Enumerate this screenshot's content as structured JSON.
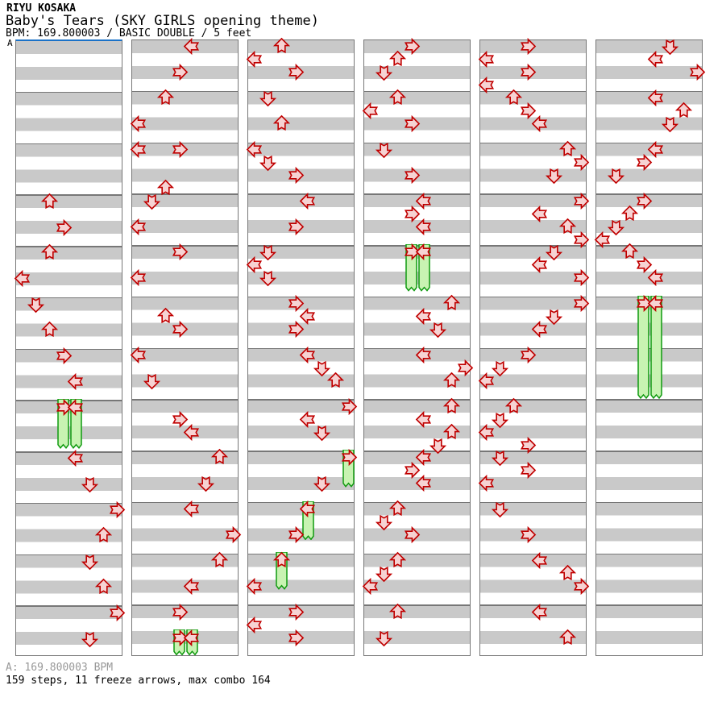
{
  "header": {
    "artist": "RIYU KOSAKA",
    "title": "Baby's Tears (SKY GIRLS opening theme)",
    "info": "BPM: 169.800003 / BASIC DOUBLE / 5 feet"
  },
  "marker": {
    "label": "A"
  },
  "footer": {
    "bpm_line": "A: 169.800003 BPM",
    "stats_line": "159 steps, 11 freeze arrows, max combo 164"
  },
  "colors": {
    "stripe_gray": "#c9c9c9",
    "border_gray": "#777777",
    "arrow_red": "#c00000",
    "arrow_fill": "#f6d3d3",
    "freeze_green": "#0f9a0f",
    "freeze_fill": "#c8f3b2",
    "marker_blue": "#1a72c8",
    "footer_gray": "#989898"
  },
  "chart": {
    "columns_count": 6,
    "measures_per_column": 12,
    "beats_per_measure": 4,
    "lanes": 8,
    "lane_directions": [
      "left",
      "down",
      "up",
      "right",
      "left",
      "down",
      "up",
      "right"
    ],
    "columns": [
      {
        "steps": [
          [
            3,
            0,
            2
          ],
          [
            3,
            2,
            3
          ],
          [
            4,
            0,
            2
          ],
          [
            4,
            2,
            0
          ],
          [
            5,
            0,
            1
          ],
          [
            5,
            2,
            2
          ],
          [
            6,
            0,
            3
          ],
          [
            6,
            2,
            4
          ],
          [
            8,
            0,
            4
          ],
          [
            8,
            2,
            5
          ],
          [
            9,
            0,
            7
          ],
          [
            9,
            2,
            6
          ],
          [
            10,
            0,
            5
          ],
          [
            10,
            2,
            6
          ],
          [
            11,
            0,
            7
          ],
          [
            11,
            2,
            5
          ]
        ],
        "freezes": [
          [
            7,
            0,
            3,
            3.75
          ],
          [
            7,
            0,
            4,
            3.75
          ]
        ]
      },
      {
        "steps": [
          [
            0,
            0,
            4
          ],
          [
            0,
            2,
            3
          ],
          [
            1,
            0,
            2
          ],
          [
            1,
            2,
            0
          ],
          [
            2,
            0,
            0
          ],
          [
            2,
            0,
            3
          ],
          [
            2,
            3,
            2
          ],
          [
            3,
            0,
            1
          ],
          [
            3,
            2,
            0
          ],
          [
            4,
            0,
            3
          ],
          [
            4,
            2,
            0
          ],
          [
            5,
            1,
            2
          ],
          [
            5,
            2,
            3
          ],
          [
            6,
            0,
            0
          ],
          [
            6,
            2,
            1
          ],
          [
            7,
            1,
            3
          ],
          [
            7,
            2,
            4
          ],
          [
            8,
            0,
            6
          ],
          [
            8,
            2,
            5
          ],
          [
            9,
            0,
            4
          ],
          [
            9,
            2,
            7
          ],
          [
            10,
            0,
            6
          ],
          [
            10,
            2,
            4
          ],
          [
            11,
            0,
            3
          ]
        ],
        "freezes": [
          [
            11,
            2,
            3,
            3.9
          ],
          [
            11,
            2,
            4,
            3.9
          ]
        ]
      },
      {
        "steps": [
          [
            0,
            0,
            2
          ],
          [
            0,
            1,
            0
          ],
          [
            0,
            2,
            3
          ],
          [
            1,
            0,
            1
          ],
          [
            1,
            2,
            2
          ],
          [
            2,
            0,
            0
          ],
          [
            2,
            1,
            1
          ],
          [
            2,
            2,
            3
          ],
          [
            3,
            0,
            4
          ],
          [
            3,
            2,
            3
          ],
          [
            4,
            0,
            1
          ],
          [
            4,
            1,
            0
          ],
          [
            4,
            2,
            1
          ],
          [
            5,
            0,
            3
          ],
          [
            5,
            1,
            4
          ],
          [
            5,
            2,
            3
          ],
          [
            6,
            0,
            4
          ],
          [
            6,
            1,
            5
          ],
          [
            6,
            2,
            6
          ],
          [
            7,
            0,
            7
          ],
          [
            7,
            1,
            4
          ],
          [
            7,
            2,
            5
          ],
          [
            8,
            2,
            5
          ],
          [
            9,
            2,
            3
          ],
          [
            10,
            2,
            0
          ],
          [
            11,
            0,
            3
          ],
          [
            11,
            1,
            0
          ],
          [
            11,
            2,
            3
          ]
        ],
        "freezes": [
          [
            8,
            0,
            7,
            2.8
          ],
          [
            9,
            0,
            4,
            2.9
          ],
          [
            10,
            0,
            2,
            2.8
          ]
        ]
      },
      {
        "steps": [
          [
            0,
            0,
            3
          ],
          [
            0,
            1,
            2
          ],
          [
            0,
            2,
            1
          ],
          [
            1,
            0,
            2
          ],
          [
            1,
            1,
            0
          ],
          [
            1,
            2,
            3
          ],
          [
            2,
            0,
            1
          ],
          [
            2,
            2,
            3
          ],
          [
            3,
            0,
            4
          ],
          [
            3,
            1,
            3
          ],
          [
            3,
            2,
            4
          ],
          [
            5,
            0,
            6
          ],
          [
            5,
            1,
            4
          ],
          [
            5,
            2,
            5
          ],
          [
            6,
            0,
            4
          ],
          [
            6,
            1,
            7
          ],
          [
            6,
            2,
            6
          ],
          [
            7,
            0,
            6
          ],
          [
            7,
            1,
            4
          ],
          [
            7,
            2,
            6
          ],
          [
            7,
            3,
            5
          ],
          [
            8,
            0,
            4
          ],
          [
            8,
            1,
            3
          ],
          [
            8,
            2,
            4
          ],
          [
            9,
            0,
            2
          ],
          [
            9,
            1,
            1
          ],
          [
            9,
            2,
            3
          ],
          [
            10,
            0,
            2
          ],
          [
            10,
            1,
            1
          ],
          [
            10,
            2,
            0
          ],
          [
            11,
            0,
            2
          ],
          [
            11,
            2,
            1
          ]
        ],
        "freezes": [
          [
            4,
            0,
            3,
            3.55
          ],
          [
            4,
            0,
            4,
            3.55
          ]
        ]
      },
      {
        "steps": [
          [
            0,
            0,
            3
          ],
          [
            0,
            1,
            0
          ],
          [
            0,
            2,
            3
          ],
          [
            0,
            3,
            0
          ],
          [
            1,
            0,
            2
          ],
          [
            1,
            1,
            3
          ],
          [
            1,
            2,
            4
          ],
          [
            2,
            0,
            6
          ],
          [
            2,
            1,
            7
          ],
          [
            2,
            2,
            5
          ],
          [
            3,
            0,
            7
          ],
          [
            3,
            1,
            4
          ],
          [
            3,
            2,
            6
          ],
          [
            3,
            3,
            7
          ],
          [
            4,
            0,
            5
          ],
          [
            4,
            1,
            4
          ],
          [
            4,
            2,
            7
          ],
          [
            5,
            0,
            7
          ],
          [
            5,
            1,
            5
          ],
          [
            5,
            2,
            4
          ],
          [
            6,
            0,
            3
          ],
          [
            6,
            1,
            1
          ],
          [
            6,
            2,
            0
          ],
          [
            7,
            0,
            2
          ],
          [
            7,
            1,
            1
          ],
          [
            7,
            2,
            0
          ],
          [
            7,
            3,
            3
          ],
          [
            8,
            0,
            1
          ],
          [
            8,
            1,
            3
          ],
          [
            8,
            2,
            0
          ],
          [
            9,
            0,
            1
          ],
          [
            9,
            2,
            3
          ],
          [
            10,
            0,
            4
          ],
          [
            10,
            1,
            6
          ],
          [
            10,
            2,
            7
          ],
          [
            11,
            0,
            4
          ],
          [
            11,
            2,
            6
          ]
        ],
        "freezes": []
      },
      {
        "steps": [
          [
            0,
            0,
            5
          ],
          [
            0,
            1,
            4
          ],
          [
            0,
            2,
            7
          ],
          [
            1,
            0,
            4
          ],
          [
            1,
            1,
            6
          ],
          [
            1,
            2,
            5
          ],
          [
            2,
            0,
            4
          ],
          [
            2,
            1,
            3
          ],
          [
            2,
            2,
            1
          ],
          [
            3,
            0,
            3
          ],
          [
            3,
            1,
            2
          ],
          [
            3,
            2,
            1
          ],
          [
            3,
            3,
            0
          ],
          [
            4,
            0,
            2
          ],
          [
            4,
            1,
            3
          ],
          [
            4,
            2,
            4
          ]
        ],
        "freezes": [
          [
            5,
            0,
            3,
            7.9
          ],
          [
            5,
            0,
            4,
            7.9
          ]
        ]
      }
    ]
  }
}
